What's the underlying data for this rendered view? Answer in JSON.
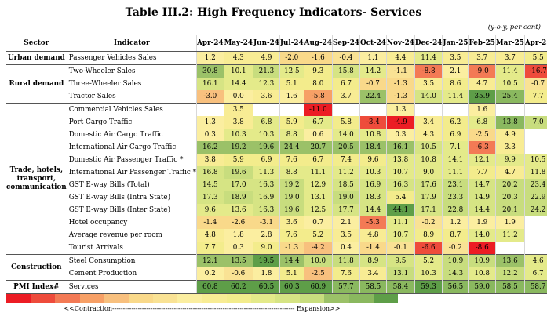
{
  "title": "Table III.2: High Frequency Indicators- Services",
  "unit_note": "(y-o-y, per cent)",
  "header": {
    "sector": "Sector",
    "indicator": "Indicator",
    "months": [
      "Apr-24",
      "May-24",
      "Jun-24",
      "Jul-24",
      "Aug-24",
      "Sep-24",
      "Oct-24",
      "Nov-24",
      "Dec-24",
      "Jan-25",
      "Feb-25",
      "Mar-25",
      "Apr-25"
    ]
  },
  "groups": [
    {
      "sector": "Urban demand",
      "rows": [
        {
          "indicator": "Passenger Vehicles Sales",
          "values": [
            "1.2",
            "4.3",
            "4.9",
            "-2.0",
            "-1.6",
            "-0.4",
            "1.1",
            "4.4",
            "11.4",
            "3.5",
            "3.7",
            "3.7",
            "5.5"
          ]
        }
      ]
    },
    {
      "sector": "Rural demand",
      "rows": [
        {
          "indicator": "Two-Wheeler Sales",
          "values": [
            "30.8",
            "10.1",
            "21.3",
            "12.5",
            "9.3",
            "15.8",
            "14.2",
            "-1.1",
            "-8.8",
            "2.1",
            "-9.0",
            "11.4",
            "-16.7"
          ]
        },
        {
          "indicator": "Three-Wheeler Sales",
          "values": [
            "16.1",
            "14.4",
            "12.3",
            "5.1",
            "8.0",
            "6.7",
            "-0.7",
            "-1.3",
            "3.5",
            "8.6",
            "4.7",
            "10.5",
            "-0.7"
          ]
        },
        {
          "indicator": "Tractor Sales",
          "values": [
            "-3.0",
            "0.0",
            "3.6",
            "1.6",
            "-5.8",
            "3.7",
            "22.4",
            "-1.3",
            "14.0",
            "11.4",
            "35.9",
            "25.4",
            "7.7"
          ]
        }
      ]
    },
    {
      "sector": "Trade, hotels, transport, communication",
      "rows": [
        {
          "indicator": "Commercial Vehicles Sales",
          "values": [
            "",
            "3.5",
            "",
            "",
            "-11.0",
            "",
            "",
            "1.3",
            "",
            "",
            "1.6",
            "",
            ""
          ]
        },
        {
          "indicator": "Port Cargo Traffic",
          "values": [
            "1.3",
            "3.8",
            "6.8",
            "5.9",
            "6.7",
            "5.8",
            "-3.4",
            "-4.9",
            "3.4",
            "6.2",
            "6.8",
            "13.8",
            "7.0"
          ]
        },
        {
          "indicator": "Domestic Air Cargo Traffic",
          "values": [
            "0.3",
            "10.3",
            "10.3",
            "8.8",
            "0.6",
            "14.0",
            "10.8",
            "0.3",
            "4.3",
            "6.9",
            "-2.5",
            "4.9",
            ""
          ]
        },
        {
          "indicator": "International Air Cargo Traffic",
          "values": [
            "16.2",
            "19.2",
            "19.6",
            "24.4",
            "20.7",
            "20.5",
            "18.4",
            "16.1",
            "10.5",
            "7.1",
            "-6.3",
            "3.3",
            ""
          ]
        },
        {
          "indicator": "Domestic Air Passenger Traffic *",
          "values": [
            "3.8",
            "5.9",
            "6.9",
            "7.6",
            "6.7",
            "7.4",
            "9.6",
            "13.8",
            "10.8",
            "14.1",
            "12.1",
            "9.9",
            "10.5"
          ]
        },
        {
          "indicator": "International Air Passenger Traffic *",
          "values": [
            "16.8",
            "19.6",
            "11.3",
            "8.8",
            "11.1",
            "11.2",
            "10.3",
            "10.7",
            "9.0",
            "11.1",
            "7.7",
            "4.7",
            "11.8"
          ]
        },
        {
          "indicator": "GST E-way Bills (Total)",
          "values": [
            "14.5",
            "17.0",
            "16.3",
            "19.2",
            "12.9",
            "18.5",
            "16.9",
            "16.3",
            "17.6",
            "23.1",
            "14.7",
            "20.2",
            "23.4"
          ]
        },
        {
          "indicator": "GST E-way Bills (Intra State)",
          "values": [
            "17.3",
            "18.9",
            "16.9",
            "19.0",
            "13.1",
            "19.0",
            "18.3",
            "5.4",
            "17.9",
            "23.3",
            "14.9",
            "20.3",
            "22.9"
          ]
        },
        {
          "indicator": "GST E-way Bills (Inter State)",
          "values": [
            "9.6",
            "13.6",
            "16.3",
            "19.6",
            "12.5",
            "17.7",
            "14.4",
            "44.1",
            "17.1",
            "22.8",
            "14.4",
            "20.1",
            "24.2"
          ]
        },
        {
          "indicator": "Hotel occupancy",
          "values": [
            "-1.4",
            "-2.6",
            "-3.1",
            "3.6",
            "0.7",
            "2.1",
            "-5.3",
            "11.1",
            "-0.2",
            "1.2",
            "1.9",
            "1.9",
            ""
          ]
        },
        {
          "indicator": "Average revenue per room",
          "values": [
            "4.8",
            "1.8",
            "2.8",
            "7.6",
            "5.2",
            "3.5",
            "4.8",
            "10.7",
            "8.9",
            "8.7",
            "14.0",
            "11.2",
            ""
          ]
        },
        {
          "indicator": "Tourist Arrivals",
          "values": [
            "7.7",
            "0.3",
            "9.0",
            "-1.3",
            "-4.2",
            "0.4",
            "-1.4",
            "-0.1",
            "-6.6",
            "-0.2",
            "-8.6",
            "",
            ""
          ]
        }
      ]
    },
    {
      "sector": "Construction",
      "rows": [
        {
          "indicator": "Steel Consumption",
          "values": [
            "12.1",
            "13.5",
            "19.5",
            "14.4",
            "10.0",
            "11.8",
            "8.9",
            "9.5",
            "5.2",
            "10.9",
            "10.9",
            "13.6",
            "4.6"
          ]
        },
        {
          "indicator": "Cement Production",
          "values": [
            "0.2",
            "-0.6",
            "1.8",
            "5.1",
            "-2.5",
            "7.6",
            "3.4",
            "13.1",
            "10.3",
            "14.3",
            "10.8",
            "12.2",
            "6.7"
          ]
        }
      ]
    },
    {
      "sector": "PMI Index#",
      "rows": [
        {
          "indicator": "Services",
          "values": [
            "60.8",
            "60.2",
            "60.5",
            "60.3",
            "60.9",
            "57.7",
            "58.5",
            "58.4",
            "59.3",
            "56.5",
            "59.0",
            "58.5",
            "58.7"
          ]
        }
      ]
    }
  ],
  "cell_colors": {
    "Passenger Vehicles Sales": [
      "#fbeea0",
      "#f8ec94",
      "#f8ec94",
      "#f9d98a",
      "#f9d98a",
      "#f9e294",
      "#fbeea0",
      "#f8ec94",
      "#e4ea8a",
      "#f8ec94",
      "#f8ec94",
      "#f8ec94",
      "#f3ec8c"
    ],
    "Two-Wheeler Sales": [
      "#9bc168",
      "#e4ea8a",
      "#c8dd7e",
      "#e4ea8a",
      "#f3ec8c",
      "#d6e484",
      "#e4ea8a",
      "#f9e294",
      "#f37a55",
      "#fbeea0",
      "#f37a55",
      "#e4ea8a",
      "#ee4b3b"
    ],
    "Three-Wheeler Sales": [
      "#d6e484",
      "#e4ea8a",
      "#e4ea8a",
      "#f3ec8c",
      "#f3ec8c",
      "#f3ec8c",
      "#f9d98a",
      "#f9d98a",
      "#f8ec94",
      "#f3ec8c",
      "#f8ec94",
      "#e4ea8a",
      "#f9e294"
    ],
    "Tractor Sales": [
      "#f8c07e",
      "#fbeea0",
      "#f8ec94",
      "#fbeea0",
      "#f7a066",
      "#f8ec94",
      "#9bc168",
      "#f9d98a",
      "#d6e484",
      "#e4ea8a",
      "#5e9e48",
      "#8ab85f",
      "#f3ec8c"
    ],
    "Commercial Vehicles Sales": [
      "",
      "#f8ec94",
      "",
      "",
      "#ec1c24",
      "",
      "",
      "#fbeea0",
      "",
      "",
      "#fbeea0",
      "",
      ""
    ],
    "Port Cargo Traffic": [
      "#fbeea0",
      "#f8ec94",
      "#e4ea8a",
      "#f3ec8c",
      "#e4ea8a",
      "#f3ec8c",
      "#ee4b3b",
      "#ec1c24",
      "#f8ec94",
      "#f3ec8c",
      "#e4ea8a",
      "#8ab85f",
      "#c8dd7e"
    ],
    "Domestic Air Cargo Traffic": [
      "#fbeea0",
      "#e4ea8a",
      "#e4ea8a",
      "#e4ea8a",
      "#fbeea0",
      "#e4ea8a",
      "#e4ea8a",
      "#fbeea0",
      "#f8ec94",
      "#f3ec8c",
      "#f9d98a",
      "#f8ec94",
      ""
    ],
    "International Air Cargo Traffic": [
      "#9bc168",
      "#9bc168",
      "#9bc168",
      "#9bc168",
      "#9bc168",
      "#9bc168",
      "#9bc168",
      "#9bc168",
      "#d6e484",
      "#e4ea8a",
      "#f37a55",
      "#f8ec94",
      ""
    ],
    "Domestic Air Passenger Traffic *": [
      "#f8ec94",
      "#f3ec8c",
      "#f3ec8c",
      "#f3ec8c",
      "#f3ec8c",
      "#f3ec8c",
      "#f3ec8c",
      "#e4ea8a",
      "#e4ea8a",
      "#e4ea8a",
      "#e4ea8a",
      "#e4ea8a",
      "#e4ea8a"
    ],
    "International Air Passenger Traffic *": [
      "#d6e484",
      "#c8dd7e",
      "#e4ea8a",
      "#e4ea8a",
      "#e4ea8a",
      "#e4ea8a",
      "#e4ea8a",
      "#e4ea8a",
      "#e4ea8a",
      "#e4ea8a",
      "#f3ec8c",
      "#f8ec94",
      "#e4ea8a"
    ],
    "GST E-way Bills (Total)": [
      "#d6e484",
      "#d6e484",
      "#d6e484",
      "#c8dd7e",
      "#e4ea8a",
      "#d6e484",
      "#d6e484",
      "#d6e484",
      "#d6e484",
      "#c8dd7e",
      "#d6e484",
      "#c8dd7e",
      "#c8dd7e"
    ],
    "GST E-way Bills (Intra State)": [
      "#d6e484",
      "#c8dd7e",
      "#d6e484",
      "#c8dd7e",
      "#e4ea8a",
      "#c8dd7e",
      "#d6e484",
      "#f3ec8c",
      "#d6e484",
      "#c8dd7e",
      "#d6e484",
      "#c8dd7e",
      "#c8dd7e"
    ],
    "GST E-way Bills (Inter State)": [
      "#e4ea8a",
      "#e4ea8a",
      "#d6e484",
      "#c8dd7e",
      "#e4ea8a",
      "#d6e484",
      "#d6e484",
      "#5e9e48",
      "#d6e484",
      "#c8dd7e",
      "#d6e484",
      "#c8dd7e",
      "#c8dd7e"
    ],
    "Hotel occupancy": [
      "#f9d98a",
      "#f9d98a",
      "#f9d98a",
      "#f8ec94",
      "#fbeea0",
      "#fbeea0",
      "#f37a55",
      "#e4ea8a",
      "#f9e294",
      "#fbeea0",
      "#fbeea0",
      "#fbeea0",
      ""
    ],
    "Average revenue per room": [
      "#f8ec94",
      "#fbeea0",
      "#fbeea0",
      "#f3ec8c",
      "#f3ec8c",
      "#f8ec94",
      "#f8ec94",
      "#e4ea8a",
      "#f3ec8c",
      "#f3ec8c",
      "#e4ea8a",
      "#e4ea8a",
      ""
    ],
    "Tourist Arrivals": [
      "#f3ec8c",
      "#fbeea0",
      "#f3ec8c",
      "#f9d98a",
      "#f8c07e",
      "#fbeea0",
      "#f9d98a",
      "#f9e294",
      "#ee4b3b",
      "#f9e294",
      "#ec1c24",
      "",
      ""
    ],
    "Steel Consumption": [
      "#9bc168",
      "#9bc168",
      "#5e9e48",
      "#9bc168",
      "#c8dd7e",
      "#c8dd7e",
      "#d6e484",
      "#d6e484",
      "#e4ea8a",
      "#c8dd7e",
      "#c8dd7e",
      "#9bc168",
      "#e4ea8a"
    ],
    "Cement Production": [
      "#fbeea0",
      "#f9e294",
      "#fbeea0",
      "#f3ec8c",
      "#f8c07e",
      "#f3ec8c",
      "#f8ec94",
      "#c8dd7e",
      "#e4ea8a",
      "#c8dd7e",
      "#e4ea8a",
      "#c8dd7e",
      "#e4ea8a"
    ],
    "Services": [
      "#5e9e48",
      "#5e9e48",
      "#5e9e48",
      "#5e9e48",
      "#5e9e48",
      "#8ab85f",
      "#8ab85f",
      "#8ab85f",
      "#5e9e48",
      "#8ab85f",
      "#8ab85f",
      "#8ab85f",
      "#8ab85f"
    ]
  },
  "legend": {
    "colors": [
      "#ec1c24",
      "#ee4b3b",
      "#f37a55",
      "#f7a066",
      "#f8c07e",
      "#f9d98a",
      "#f9e294",
      "#fbeea0",
      "#f8ec94",
      "#f3ec8c",
      "#e4ea8a",
      "#d6e484",
      "#c8dd7e",
      "#9bc168",
      "#8ab85f",
      "#5e9e48"
    ],
    "label": "<<Contraction-------------------------------------------------------------------------------------- Expansion>>"
  }
}
